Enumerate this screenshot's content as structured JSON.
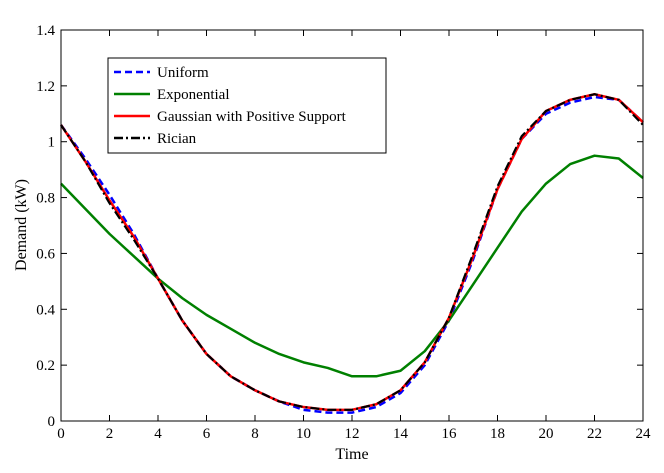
{
  "chart_data": {
    "type": "line",
    "xlabel": "Time",
    "ylabel": "Demand (kW)",
    "xlim": [
      0,
      24
    ],
    "ylim": [
      0,
      1.4
    ],
    "x_ticks": [
      "0",
      "2",
      "4",
      "6",
      "8",
      "10",
      "12",
      "14",
      "16",
      "18",
      "20",
      "22",
      "24"
    ],
    "y_ticks": [
      "0",
      "0.2",
      "0.4",
      "0.6",
      "0.8",
      "1",
      "1.2",
      "1.4"
    ],
    "grid": false,
    "legend_position": "top-left",
    "x": [
      0,
      1,
      2,
      3,
      4,
      5,
      6,
      7,
      8,
      9,
      10,
      11,
      12,
      13,
      14,
      15,
      16,
      17,
      18,
      19,
      20,
      21,
      22,
      23,
      24
    ],
    "series": [
      {
        "name": "Uniform",
        "color": "#0000ff",
        "style": "dashed",
        "values": [
          1.06,
          0.94,
          0.81,
          0.67,
          0.51,
          0.36,
          0.24,
          0.16,
          0.11,
          0.07,
          0.04,
          0.03,
          0.03,
          0.05,
          0.1,
          0.2,
          0.36,
          0.58,
          0.83,
          1.01,
          1.1,
          1.14,
          1.16,
          1.15,
          1.07
        ]
      },
      {
        "name": "Exponential",
        "color": "#008000",
        "style": "solid",
        "values": [
          0.85,
          0.76,
          0.67,
          0.59,
          0.51,
          0.44,
          0.38,
          0.33,
          0.28,
          0.24,
          0.21,
          0.19,
          0.16,
          0.16,
          0.18,
          0.25,
          0.36,
          0.49,
          0.62,
          0.75,
          0.85,
          0.92,
          0.95,
          0.94,
          0.87
        ]
      },
      {
        "name": "Gaussian with Positive Support",
        "color": "#ff0000",
        "style": "solid",
        "values": [
          1.06,
          0.93,
          0.79,
          0.66,
          0.51,
          0.36,
          0.24,
          0.16,
          0.11,
          0.07,
          0.05,
          0.04,
          0.04,
          0.06,
          0.11,
          0.21,
          0.37,
          0.59,
          0.83,
          1.01,
          1.11,
          1.15,
          1.17,
          1.15,
          1.07
        ]
      },
      {
        "name": "Rician",
        "color": "#000000",
        "style": "dashdot",
        "values": [
          1.06,
          0.93,
          0.78,
          0.65,
          0.51,
          0.36,
          0.24,
          0.16,
          0.11,
          0.07,
          0.05,
          0.04,
          0.04,
          0.06,
          0.11,
          0.21,
          0.37,
          0.6,
          0.84,
          1.02,
          1.11,
          1.15,
          1.17,
          1.15,
          1.06
        ]
      }
    ]
  }
}
